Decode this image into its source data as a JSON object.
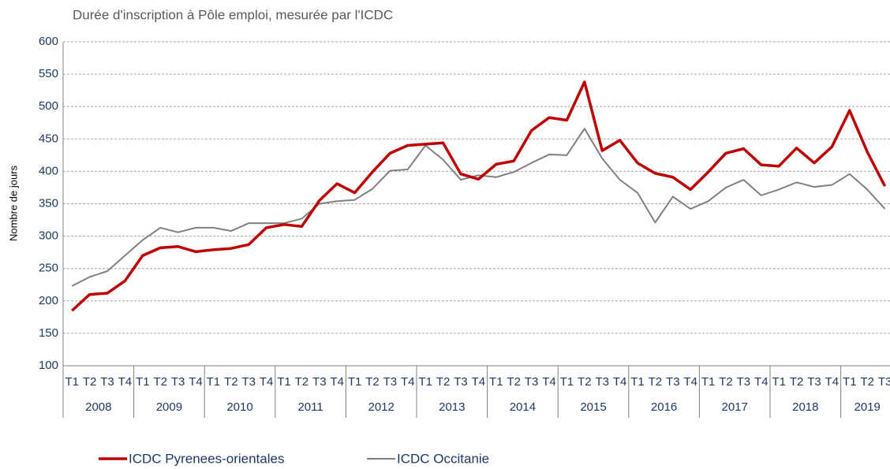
{
  "chart_data": {
    "type": "line",
    "title": "Durée d'inscription à Pôle emploi, mesurée par l'ICDC",
    "y_label": "Nombre de jours",
    "categories": [
      "T1",
      "T2",
      "T3",
      "T4",
      "T1",
      "T2",
      "T3",
      "T4",
      "T1",
      "T2",
      "T3",
      "T4",
      "T1",
      "T2",
      "T3",
      "T4",
      "T1",
      "T2",
      "T3",
      "T4",
      "T1",
      "T2",
      "T3",
      "T4",
      "T1",
      "T2",
      "T3",
      "T4",
      "T1",
      "T2",
      "T3",
      "T4",
      "T1",
      "T2",
      "T3",
      "T4",
      "T1",
      "T2",
      "T3",
      "T4",
      "T1",
      "T2",
      "T3",
      "T4",
      "T1",
      "T2",
      "T3"
    ],
    "years": [
      "2008",
      "2009",
      "2010",
      "2011",
      "2012",
      "2013",
      "2014",
      "2015",
      "2016",
      "2017",
      "2018",
      "2019"
    ],
    "series": [
      {
        "name": "ICDC Pyrenees-orientales",
        "color": "#c00000",
        "width": 3.5,
        "values": [
          185,
          210,
          212,
          231,
          270,
          282,
          284,
          276,
          279,
          281,
          287,
          313,
          318,
          315,
          355,
          381,
          367,
          399,
          428,
          440,
          442,
          444,
          396,
          388,
          411,
          416,
          463,
          483,
          479,
          538,
          432,
          448,
          413,
          397,
          391,
          372,
          399,
          428,
          435,
          410,
          408,
          436,
          413,
          438,
          494,
          430,
          377
        ]
      },
      {
        "name": "ICDC Occitanie",
        "color": "#808080",
        "width": 2,
        "values": [
          223,
          237,
          246,
          270,
          294,
          313,
          306,
          313,
          313,
          308,
          320,
          320,
          320,
          327,
          350,
          354,
          356,
          373,
          401,
          403,
          440,
          418,
          387,
          394,
          391,
          399,
          413,
          426,
          425,
          466,
          420,
          387,
          367,
          321,
          361,
          342,
          354,
          375,
          387,
          363,
          372,
          383,
          376,
          379,
          396,
          372,
          342
        ]
      }
    ],
    "ylim": [
      100,
      600
    ],
    "yticks": [
      100,
      150,
      200,
      250,
      300,
      350,
      400,
      450,
      500,
      550,
      600
    ],
    "grid": true,
    "legend": "bottom"
  }
}
